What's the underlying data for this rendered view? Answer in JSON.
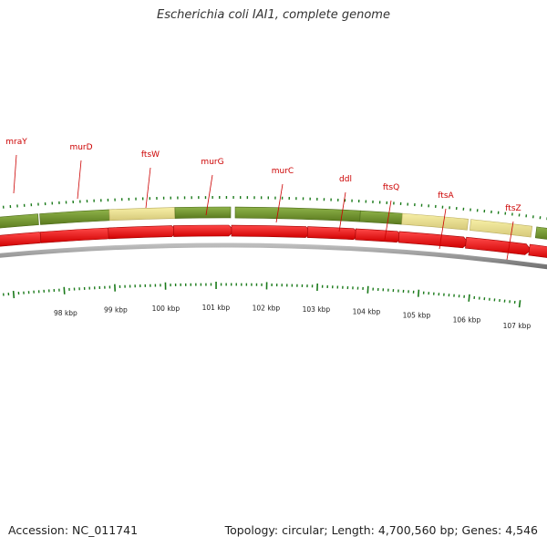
{
  "title": "Escherichia coli IAI1, complete genome",
  "footer": {
    "accession": "Accession: NC_011741",
    "summary": "Topology: circular; Length: 4,700,560 bp; Genes: 4,546"
  },
  "colors": {
    "gene_label": "#cc0000",
    "gene_dark": "#6b8e23",
    "gene_light": "#f0e68c",
    "cds_arrow": "#e60000",
    "backbone": "#808080",
    "tick": "#1a7a1a"
  },
  "genes": [
    {
      "name": "mraY"
    },
    {
      "name": "murD"
    },
    {
      "name": "ftsW"
    },
    {
      "name": "murG"
    },
    {
      "name": "murC"
    },
    {
      "name": "ddl"
    },
    {
      "name": "ftsQ"
    },
    {
      "name": "ftsA"
    },
    {
      "name": "ftsZ"
    }
  ],
  "scale_labels": [
    "98 kbp",
    "99 kbp",
    "100 kbp",
    "101 kbp",
    "102 kbp",
    "103 kbp",
    "104 kbp",
    "105 kbp",
    "106 kbp",
    "107 kbp"
  ]
}
